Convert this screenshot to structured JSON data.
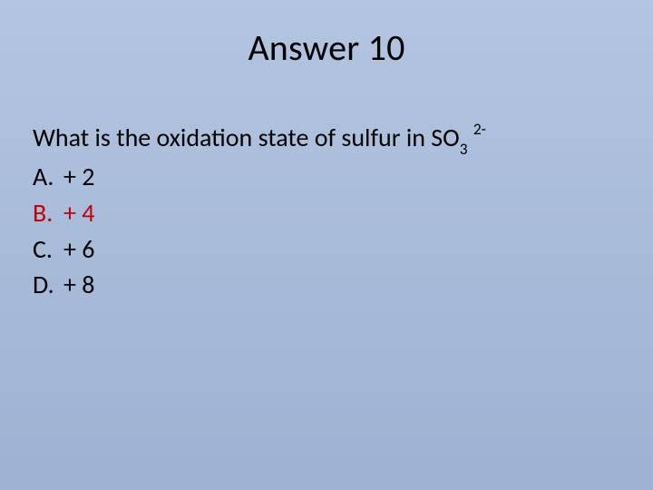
{
  "background_gradient": [
    "#b3c5e0",
    "#9db2d3"
  ],
  "title": "Answer 10",
  "title_fontsize": 40,
  "body_fontsize": 28,
  "text_color": "#000000",
  "highlight_color": "#c00000",
  "question_prefix": "What is the oxidation state of sulfur in SO",
  "question_subscript": "3",
  "question_superscript": "2-",
  "choices": [
    {
      "letter": "A.",
      "value": "+ 2",
      "highlighted": false
    },
    {
      "letter": "B.",
      "value": "+ 4",
      "highlighted": true
    },
    {
      "letter": "C.",
      "value": "+ 6",
      "highlighted": false
    },
    {
      "letter": "D.",
      "value": "+ 8",
      "highlighted": false
    }
  ]
}
